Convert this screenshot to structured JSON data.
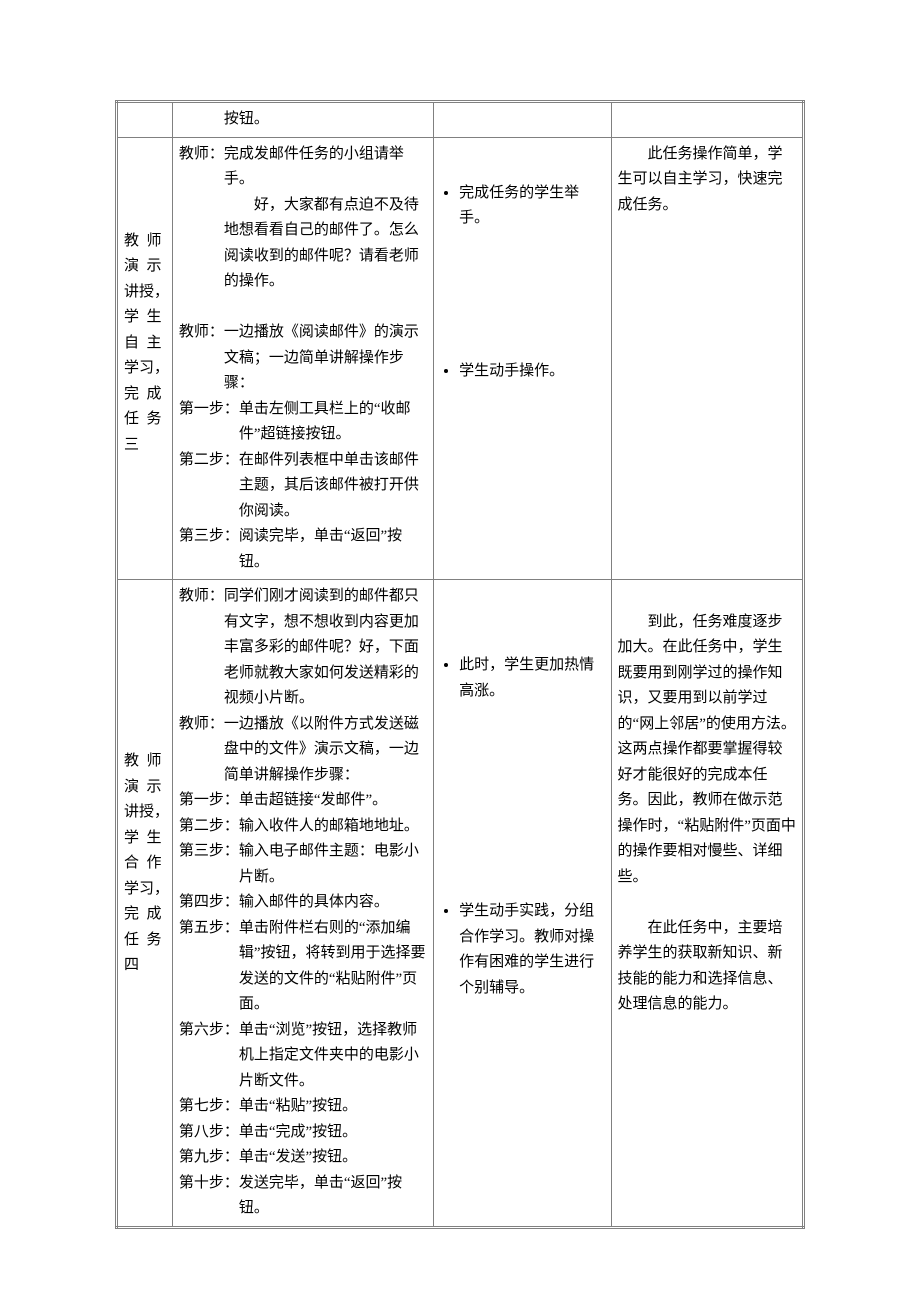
{
  "row0": {
    "col2_cont": "按钮。"
  },
  "row1": {
    "label": {
      "l1": "教师",
      "l2": "演示",
      "l3": "讲授，",
      "l4": "学生",
      "l5": "自主",
      "l6": "学习，",
      "l7": "完成",
      "l8": "任务",
      "l9": "三"
    },
    "teacher": {
      "p1": "教师：完成发邮件任务的小组请举手。",
      "p1b": "好，大家都有点迫不及待地想看看自己的邮件了。怎么阅读收到的邮件呢？请看老师的操作。",
      "p2": "教师：一边播放《阅读邮件》的演示文稿；一边简单讲解操作步骤：",
      "s1": "第一步：单击左侧工具栏上的“收邮件”超链接按钮。",
      "s2": "第二步：在邮件列表框中单击该邮件主题，其后该邮件被打开供你阅读。",
      "s3": "第三步：阅读完毕，单击“返回”按钮。"
    },
    "student": {
      "b1": "完成任务的学生举手。",
      "b2": "学生动手操作。"
    },
    "notes": {
      "p1": "此任务操作简单，学生可以自主学习，快速完成任务。"
    }
  },
  "row2": {
    "label": {
      "l1": "教师",
      "l2": "演示",
      "l3": "讲授，",
      "l4": "学生",
      "l5": "合作",
      "l6": "学习，",
      "l7": "完成",
      "l8": "任务",
      "l9": "四"
    },
    "teacher": {
      "p1": "教师：同学们刚才阅读到的邮件都只有文字，想不想收到内容更加丰富多彩的邮件呢？好，下面老师就教大家如何发送精彩的视频小片断。",
      "p2": "教师：一边播放《以附件方式发送磁盘中的文件》演示文稿，一边简单讲解操作步骤：",
      "s1": "第一步：单击超链接“发邮件”。",
      "s2": "第二步：输入收件人的邮箱地地址。",
      "s3": "第三步：输入电子邮件主题：电影小片断。",
      "s4": "第四步：输入邮件的具体内容。",
      "s5": "第五步：单击附件栏右则的“添加编辑”按钮，将转到用于选择要发送的文件的“粘贴附件”页面。",
      "s6": "第六步：单击“浏览”按钮，选择教师机上指定文件夹中的电影小片断文件。",
      "s7": "第七步：单击“粘贴”按钮。",
      "s8": "第八步：单击“完成”按钮。",
      "s9": "第九步：单击“发送”按钮。",
      "s10": "第十步：发送完毕，单击“返回”按钮。"
    },
    "student": {
      "b1": "此时，学生更加热情高涨。",
      "b2": "学生动手实践，分组合作学习。教师对操作有困难的学生进行个别辅导。"
    },
    "notes": {
      "p1": "到此，任务难度逐步加大。在此任务中，学生既要用到刚学过的操作知识，又要用到以前学过的“网上邻居”的使用方法。这两点操作都要掌握得较好才能很好的完成本任务。因此，教师在做示范操作时，“粘贴附件”页面中的操作要相对慢些、详细些。",
      "p2": "在此任务中，主要培养学生的获取新知识、新技能的能力和选择信息、处理信息的能力。"
    }
  }
}
